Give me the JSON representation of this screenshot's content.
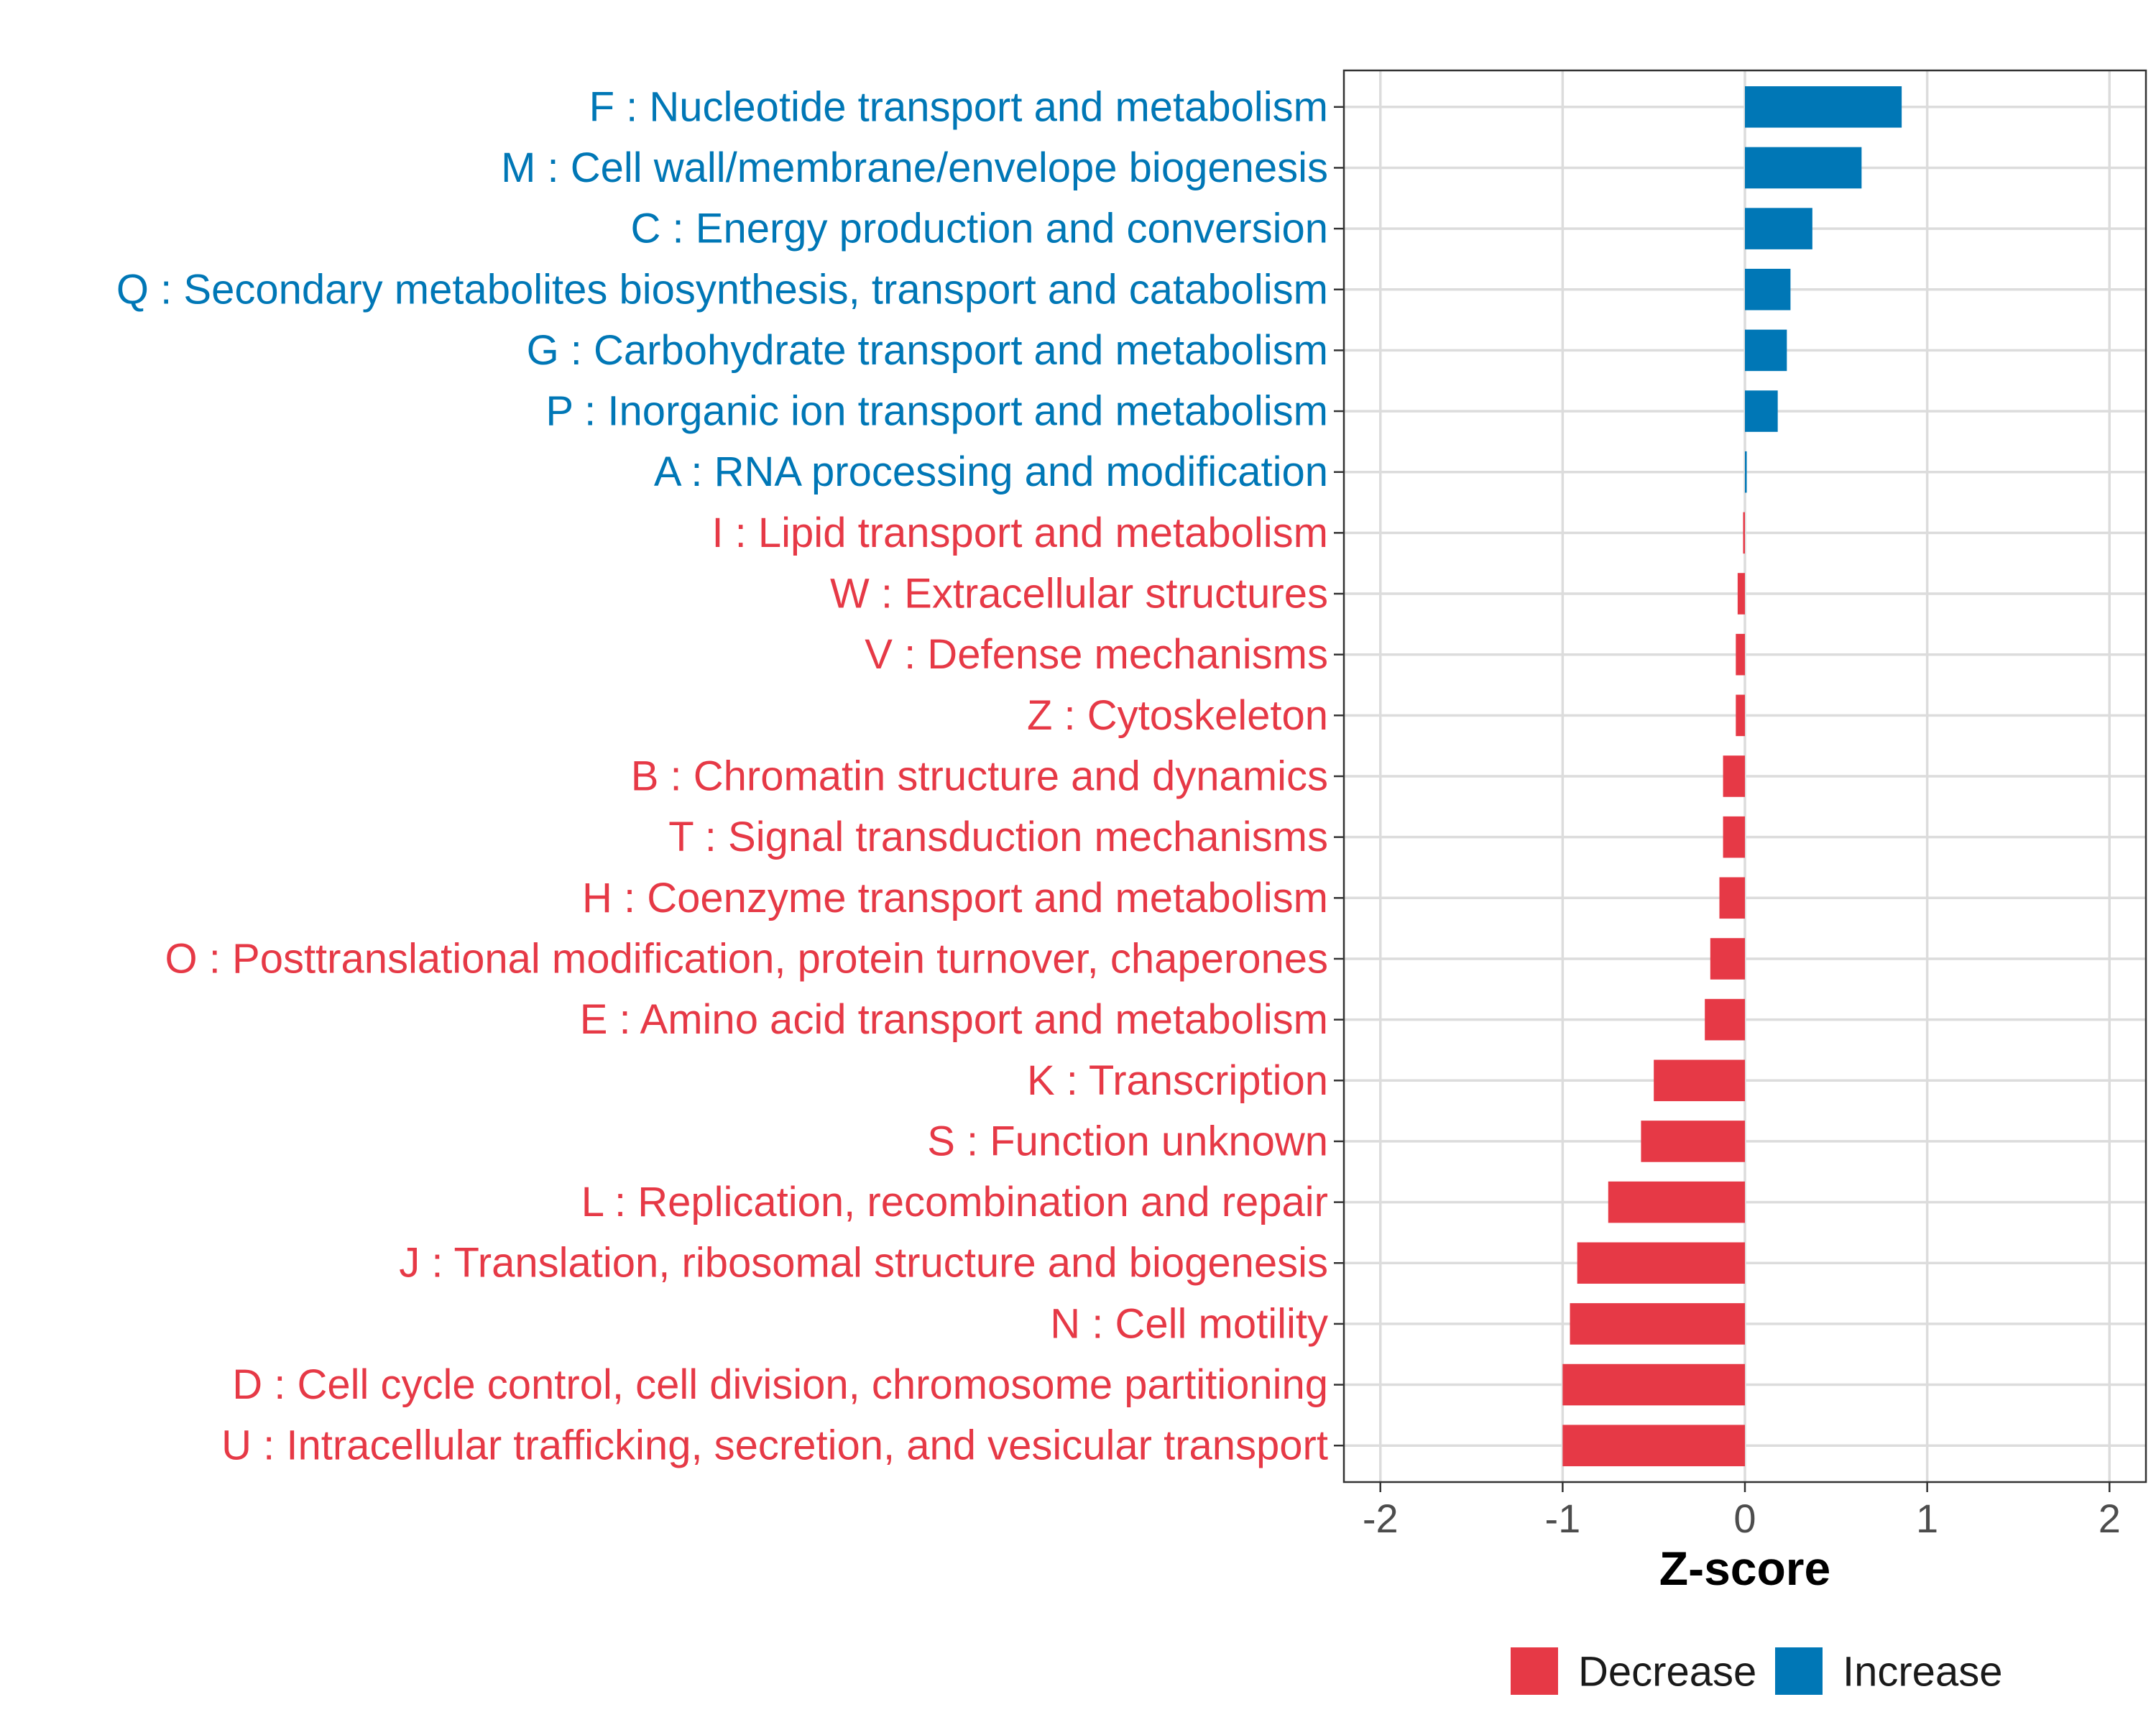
{
  "chart_data": {
    "type": "bar",
    "orientation": "horizontal",
    "xlabel": "Z-score",
    "ylabel": "",
    "xlim": [
      -2.2,
      2.2
    ],
    "x_ticks": [
      -2,
      -1,
      0,
      1,
      2
    ],
    "x_tick_labels": [
      "-2",
      "-1",
      "0",
      "1",
      "2"
    ],
    "grid": true,
    "legend_position": "bottom",
    "colors": {
      "Decrease": "#E63946",
      "Increase": "#0077B6"
    },
    "legend": [
      {
        "name": "Decrease",
        "color": "#E63946"
      },
      {
        "name": "Increase",
        "color": "#0077B6"
      }
    ],
    "categories": [
      "F : Nucleotide transport and metabolism",
      "M : Cell wall/membrane/envelope biogenesis",
      "C : Energy production and conversion",
      "Q : Secondary metabolites biosynthesis, transport and catabolism",
      "G : Carbohydrate transport and metabolism",
      "P : Inorganic ion transport and metabolism",
      "A : RNA processing and modification",
      "I : Lipid transport and metabolism",
      "W : Extracellular structures",
      "V : Defense mechanisms",
      "Z : Cytoskeleton",
      "B : Chromatin structure and dynamics",
      "T : Signal transduction mechanisms",
      "H : Coenzyme transport and metabolism",
      "O : Posttranslational modification, protein turnover, chaperones",
      "E : Amino acid transport and metabolism",
      "K : Transcription",
      "S : Function unknown",
      "L : Replication, recombination and repair",
      "J : Translation, ribosomal structure and biogenesis",
      "N : Cell motility",
      "D : Cell cycle control, cell division, chromosome partitioning",
      "U : Intracellular trafficking, secretion, and vesicular transport"
    ],
    "values": [
      0.86,
      0.64,
      0.37,
      0.25,
      0.23,
      0.18,
      0.01,
      -0.01,
      -0.04,
      -0.05,
      -0.05,
      -0.12,
      -0.12,
      -0.14,
      -0.19,
      -0.22,
      -0.5,
      -0.57,
      -0.75,
      -0.92,
      -0.96,
      -1.0,
      -1.0
    ],
    "groups": [
      "Increase",
      "Increase",
      "Increase",
      "Increase",
      "Increase",
      "Increase",
      "Increase",
      "Decrease",
      "Decrease",
      "Decrease",
      "Decrease",
      "Decrease",
      "Decrease",
      "Decrease",
      "Decrease",
      "Decrease",
      "Decrease",
      "Decrease",
      "Decrease",
      "Decrease",
      "Decrease",
      "Decrease",
      "Decrease"
    ]
  }
}
